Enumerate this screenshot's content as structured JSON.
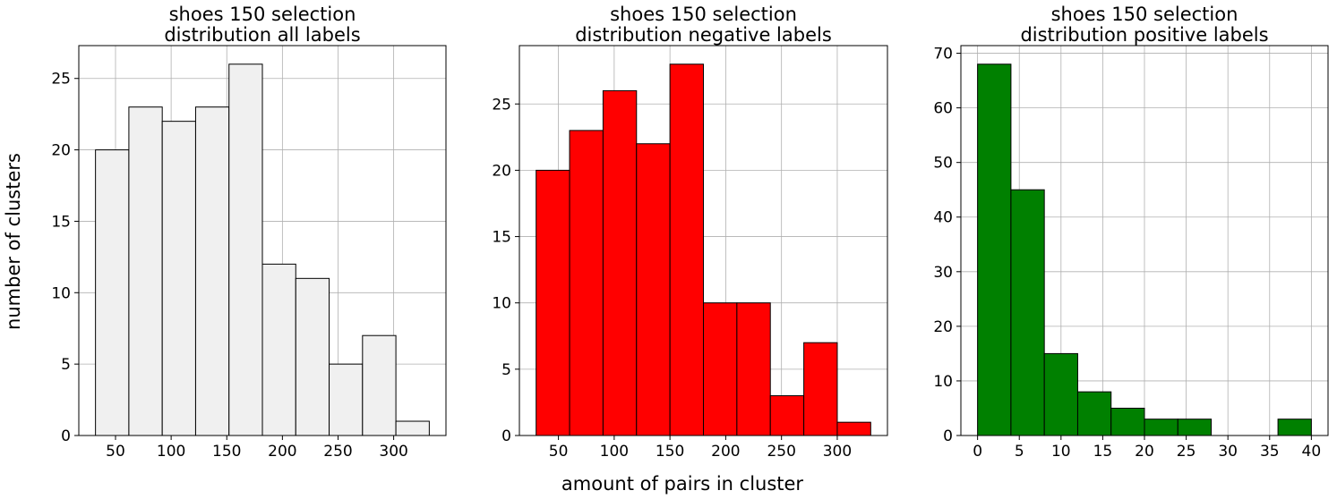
{
  "figure": {
    "supxlabel": "amount of pairs in cluster",
    "supylabel": "number of clusters"
  },
  "chart_data": [
    {
      "type": "bar",
      "title": [
        "shoes 150 selection",
        "distribution all labels"
      ],
      "bin_edges": [
        32,
        62,
        92,
        122,
        152,
        182,
        212,
        242,
        272,
        302,
        332
      ],
      "values": [
        20,
        23,
        22,
        23,
        26,
        12,
        11,
        5,
        7,
        1
      ],
      "color": "#f0f0f0",
      "xlim": [
        17,
        347
      ],
      "ylim": [
        0,
        27.3
      ],
      "xticks": [
        50,
        100,
        150,
        200,
        250,
        300
      ],
      "yticks": [
        0,
        5,
        10,
        15,
        20,
        25
      ],
      "grid": true
    },
    {
      "type": "bar",
      "title": [
        "shoes 150 selection",
        "distribution negative labels"
      ],
      "bin_edges": [
        30,
        60,
        90,
        120,
        150,
        180,
        210,
        240,
        270,
        300,
        330
      ],
      "values": [
        20,
        23,
        26,
        22,
        28,
        10,
        10,
        3,
        7,
        1
      ],
      "color": "#ff0000",
      "xlim": [
        15,
        345
      ],
      "ylim": [
        0,
        29.4
      ],
      "xticks": [
        50,
        100,
        150,
        200,
        250,
        300
      ],
      "yticks": [
        0,
        5,
        10,
        15,
        20,
        25
      ],
      "grid": true
    },
    {
      "type": "bar",
      "title": [
        "shoes 150 selection",
        "distribution positive labels"
      ],
      "bin_edges": [
        0,
        4,
        8,
        12,
        16,
        20,
        24,
        28,
        32,
        36,
        40
      ],
      "values": [
        68,
        45,
        15,
        8,
        5,
        3,
        3,
        0,
        0,
        3
      ],
      "color": "#008000",
      "xlim": [
        -2,
        42
      ],
      "ylim": [
        0,
        71.4
      ],
      "xticks": [
        0,
        5,
        10,
        15,
        20,
        25,
        30,
        35,
        40
      ],
      "yticks": [
        0,
        10,
        20,
        30,
        40,
        50,
        60,
        70
      ],
      "grid": true
    }
  ]
}
